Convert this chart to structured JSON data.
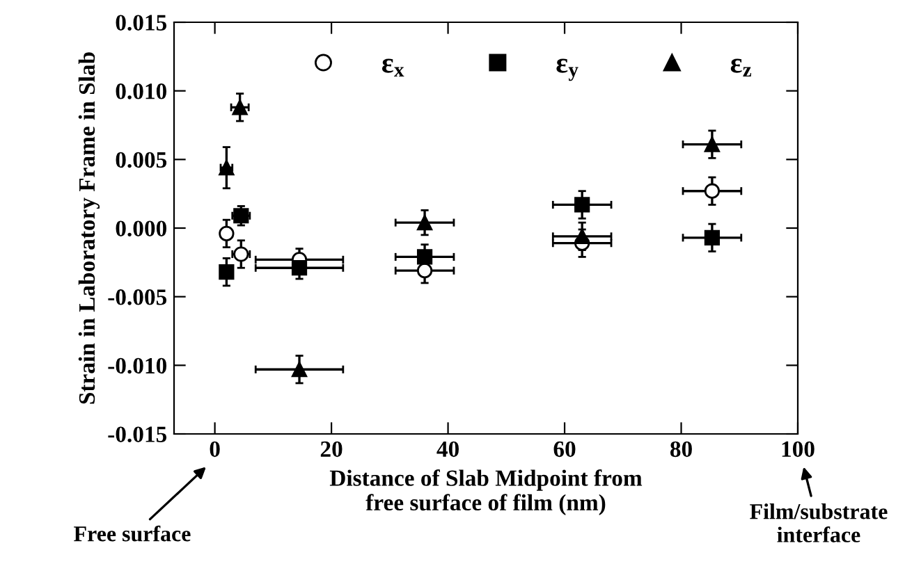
{
  "chart_data": {
    "type": "scatter",
    "xlabel": "Distance of Slab Midpoint from\nfree surface of film (nm)",
    "ylabel": "Strain in Laboratory Frame in Slab",
    "xlim": [
      -7,
      100
    ],
    "xticks": [
      0,
      20,
      40,
      60,
      80,
      100
    ],
    "ylim": [
      -0.015,
      0.015
    ],
    "yticks": [
      {
        "value": -0.015,
        "label": "-0.015"
      },
      {
        "value": -0.01,
        "label": "-0.010"
      },
      {
        "value": -0.005,
        "label": "-0.005"
      },
      {
        "value": 0,
        "label": "0.000"
      },
      {
        "value": 0.005,
        "label": "0.005"
      },
      {
        "value": 0.01,
        "label": "0.010"
      },
      {
        "value": 0.015,
        "label": "0.015"
      }
    ],
    "legend": "top",
    "grid": false,
    "annotations": [
      "Free surface",
      "Film/substrate\ninterface"
    ],
    "series": [
      {
        "name": "ε$_{x}$",
        "marker": "circle",
        "color": "#000000",
        "x": [
          2,
          4.5,
          14.5,
          36,
          63,
          85.3
        ],
        "values": [
          -0.0004,
          -0.0019,
          -0.0023,
          -0.0031,
          -0.0011,
          0.0027
        ],
        "errors": [
          0.001,
          0.001,
          0.0008,
          0.0009,
          0.001,
          0.001
        ],
        "xerrors": [
          1,
          1.5,
          7.5,
          5,
          5,
          5
        ]
      },
      {
        "name": "ε$_{y}$",
        "marker": "square",
        "color": "#000000",
        "x": [
          2,
          4.5,
          14.5,
          36,
          63,
          85.3
        ],
        "values": [
          -0.0032,
          0.0009,
          -0.0029,
          -0.0021,
          0.0017,
          -0.0007
        ],
        "errors": [
          0.001,
          0.0007,
          0.0008,
          0.0009,
          0.001,
          0.001
        ],
        "xerrors": [
          1,
          1.5,
          7.5,
          5,
          5,
          5
        ]
      },
      {
        "name": "ε$_{z}$",
        "marker": "triangle",
        "color": "#000000",
        "x": [
          2,
          4.3,
          14.5,
          36,
          63,
          85.3
        ],
        "values": [
          0.0044,
          0.0088,
          -0.0103,
          0.0004,
          -0.0006,
          0.0061
        ],
        "errors": [
          0.0015,
          0.001,
          0.001,
          0.0009,
          0.001,
          0.001
        ],
        "xerrors": [
          1,
          1.5,
          7.5,
          5,
          5,
          5
        ]
      }
    ]
  }
}
